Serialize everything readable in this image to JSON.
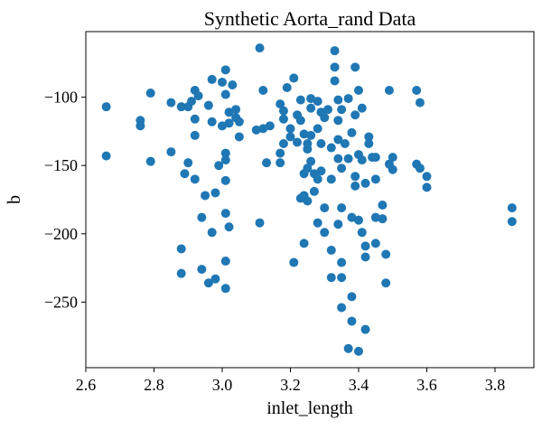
{
  "chart_data": {
    "type": "scatter",
    "title": "Synthetic Aorta_rand Data",
    "x_label": "inlet_length",
    "y_label": "b",
    "color": "#1f77b4",
    "xlim": [
      2.6,
      3.914
    ],
    "ylim": [
      -298,
      -52
    ],
    "xticks": [
      2.6,
      2.8,
      {
        "value": 3,
        "label": "3.0"
      },
      3.2,
      3.4,
      3.6,
      3.8
    ],
    "yticks": [
      {
        "value": -250,
        "label": "−250"
      },
      {
        "value": -200,
        "label": "−200"
      },
      {
        "value": -150,
        "label": "−150"
      },
      {
        "value": -100,
        "label": "−100"
      }
    ],
    "x": [
      2.66,
      2.66,
      2.76,
      2.76,
      2.79,
      2.79,
      2.85,
      2.85,
      2.88,
      2.88,
      2.89,
      2.88,
      2.9,
      2.9,
      2.91,
      2.92,
      2.92,
      2.92,
      2.92,
      2.93,
      2.94,
      2.94,
      2.96,
      2.95,
      2.96,
      2.97,
      2.97,
      2.97,
      2.98,
      2.98,
      2.99,
      3.0,
      3.0,
      3.01,
      3.01,
      3.01,
      3.01,
      3.01,
      3.01,
      3.01,
      3.01,
      3.02,
      3.02,
      3.02,
      3.03,
      3.04,
      3.04,
      3.05,
      3.05,
      3.1,
      3.12,
      3.11,
      3.11,
      3.12,
      3.13,
      3.14,
      3.17,
      3.17,
      3.17,
      3.18,
      3.18,
      3.18,
      3.19,
      3.2,
      3.2,
      3.21,
      3.21,
      3.22,
      3.22,
      3.23,
      3.23,
      3.23,
      3.24,
      3.24,
      3.24,
      3.24,
      3.25,
      3.25,
      3.25,
      3.25,
      3.26,
      3.26,
      3.26,
      3.26,
      3.27,
      3.27,
      3.28,
      3.28,
      3.28,
      3.28,
      3.29,
      3.29,
      3.29,
      3.3,
      3.3,
      3.3,
      3.31,
      3.32,
      3.32,
      3.32,
      3.32,
      3.33,
      3.33,
      3.33,
      3.34,
      3.34,
      3.34,
      3.34,
      3.34,
      3.35,
      3.35,
      3.35,
      3.35,
      3.35,
      3.35,
      3.36,
      3.37,
      3.37,
      3.37,
      3.38,
      3.38,
      3.38,
      3.38,
      3.39,
      3.39,
      3.39,
      3.39,
      3.4,
      3.4,
      3.4,
      3.4,
      3.41,
      3.41,
      3.41,
      3.42,
      3.42,
      3.42,
      3.42,
      3.43,
      3.43,
      3.44,
      3.45,
      3.45,
      3.45,
      3.45,
      3.47,
      3.47,
      3.48,
      3.48,
      3.57,
      3.57,
      3.58,
      3.58,
      3.6,
      3.6,
      3.85,
      3.85,
      3.49,
      3.49,
      3.5,
      3.5
    ],
    "values": [
      -107,
      -143,
      -117,
      -121,
      -97,
      -147,
      -104,
      -140,
      -229,
      -211,
      -156,
      -107,
      -107,
      -148,
      -103,
      -95,
      -116,
      -128,
      -160,
      -99,
      -188,
      -226,
      -106,
      -172,
      -236,
      -199,
      -87,
      -118,
      -233,
      -170,
      -150,
      -121,
      -89,
      -80,
      -146,
      -185,
      -220,
      -141,
      -161,
      -240,
      -98,
      -111,
      -195,
      -119,
      -91,
      -109,
      -115,
      -118,
      -129,
      -124,
      -123,
      -192,
      -64,
      -95,
      -148,
      -121,
      -148,
      -141,
      -105,
      -110,
      -116,
      -134,
      -93,
      -123,
      -129,
      -221,
      -86,
      -113,
      -133,
      -102,
      -117,
      -174,
      -156,
      -127,
      -172,
      -207,
      -152,
      -176,
      -138,
      -134,
      -128,
      -147,
      -108,
      -101,
      -156,
      -169,
      -103,
      -192,
      -160,
      -123,
      -154,
      -134,
      -111,
      -181,
      -199,
      -115,
      -109,
      -212,
      -232,
      -160,
      -137,
      -78,
      -88,
      -66,
      -145,
      -131,
      -117,
      -102,
      -193,
      -232,
      -254,
      -221,
      -181,
      -109,
      -152,
      -134,
      -101,
      -145,
      -284,
      -188,
      -126,
      -246,
      -264,
      -158,
      -78,
      -113,
      -165,
      -142,
      -286,
      -190,
      -95,
      -199,
      -146,
      -108,
      -209,
      -163,
      -270,
      -217,
      -129,
      -134,
      -144,
      -188,
      -207,
      -160,
      -144,
      -179,
      -189,
      -215,
      -236,
      -95,
      -149,
      -152,
      -104,
      -158,
      -166,
      -181,
      -191,
      -95,
      -149,
      -144,
      -153
    ]
  }
}
